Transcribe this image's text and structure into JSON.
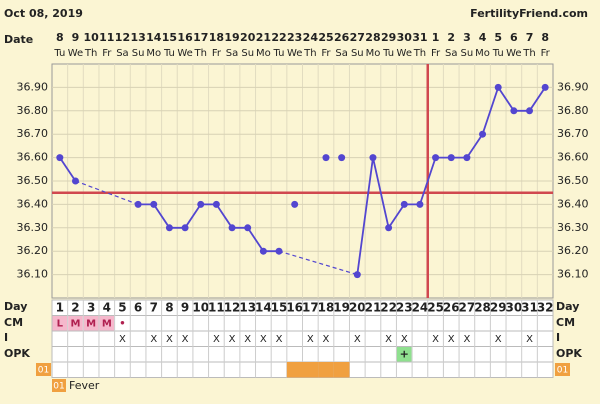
{
  "header": {
    "date": "Oct 08, 2019",
    "site": "FertilityFriend.com"
  },
  "chart_data": {
    "type": "line",
    "row_labels": {
      "date": "Date",
      "day": "Day",
      "cm": "CM",
      "intercourse": "I",
      "opk": "OPK"
    },
    "dates": [
      8,
      9,
      10,
      11,
      12,
      13,
      14,
      15,
      16,
      17,
      18,
      19,
      20,
      21,
      22,
      23,
      24,
      25,
      26,
      27,
      28,
      29,
      30,
      31,
      1,
      2,
      3,
      4,
      5,
      6,
      7,
      8
    ],
    "weekdays": [
      "Tu",
      "We",
      "Th",
      "Fr",
      "Sa",
      "Su",
      "Mo",
      "Tu",
      "We",
      "Th",
      "Fr",
      "Sa",
      "Su",
      "Mo",
      "Tu",
      "We",
      "Th",
      "Fr",
      "Sa",
      "Su",
      "Mo",
      "Tu",
      "We",
      "Th",
      "Fr",
      "Sa",
      "Su",
      "Mo",
      "Tu",
      "We",
      "Th",
      "Fr"
    ],
    "days": [
      1,
      2,
      3,
      4,
      5,
      6,
      7,
      8,
      9,
      10,
      11,
      12,
      13,
      14,
      15,
      16,
      17,
      18,
      19,
      20,
      21,
      22,
      23,
      24,
      25,
      26,
      27,
      28,
      29,
      30,
      31,
      32
    ],
    "values": [
      36.6,
      36.5,
      null,
      null,
      null,
      36.4,
      36.4,
      36.3,
      36.3,
      36.4,
      36.4,
      36.3,
      36.3,
      36.2,
      36.2,
      null,
      null,
      null,
      null,
      36.1,
      36.6,
      36.3,
      36.4,
      36.4,
      36.6,
      36.6,
      36.6,
      36.7,
      36.9,
      36.8,
      36.8,
      36.9
    ],
    "discarded_values": [
      null,
      null,
      null,
      null,
      null,
      null,
      null,
      null,
      null,
      null,
      null,
      null,
      null,
      null,
      null,
      36.4,
      null,
      36.6,
      36.6,
      null,
      null,
      null,
      null,
      null,
      null,
      null,
      null,
      null,
      null,
      null,
      null,
      null
    ],
    "color": "#5346d0",
    "ylim": [
      36.0,
      37.0
    ],
    "yticks": [
      {
        "value": 36.1,
        "label": "36.10"
      },
      {
        "value": 36.2,
        "label": "36.20"
      },
      {
        "value": 36.3,
        "label": "36.30"
      },
      {
        "value": 36.4,
        "label": "36.40"
      },
      {
        "value": 36.5,
        "label": "36.50"
      },
      {
        "value": 36.6,
        "label": "36.60"
      },
      {
        "value": 36.7,
        "label": "36.70"
      },
      {
        "value": 36.8,
        "label": "36.80"
      },
      {
        "value": 36.9,
        "label": "36.90"
      }
    ],
    "grid": true,
    "coverline": 36.45,
    "ovulation_day": 24,
    "marker_color": "#d0484f",
    "cm": [
      "L",
      "M",
      "M",
      "M",
      "•",
      null,
      null,
      null,
      null,
      null,
      null,
      null,
      null,
      null,
      null,
      null,
      null,
      null,
      null,
      null,
      null,
      null,
      null,
      null,
      null,
      null,
      null,
      null,
      null,
      null,
      null,
      null
    ],
    "intercourse": [
      null,
      null,
      null,
      null,
      "X",
      null,
      "X",
      "X",
      "X",
      null,
      "X",
      "X",
      "X",
      "X",
      "X",
      null,
      "X",
      "X",
      null,
      "X",
      null,
      "X",
      "X",
      null,
      "X",
      "X",
      "X",
      null,
      "X",
      null,
      "X",
      null
    ],
    "opk": [
      null,
      null,
      null,
      null,
      null,
      null,
      null,
      null,
      null,
      null,
      null,
      null,
      null,
      null,
      null,
      null,
      null,
      null,
      null,
      null,
      null,
      null,
      "+",
      null,
      null,
      null,
      null,
      null,
      null,
      null,
      null,
      null
    ],
    "fever_days": [
      16,
      17,
      18,
      19
    ],
    "fever_code": "01",
    "fever_label": "Fever"
  }
}
